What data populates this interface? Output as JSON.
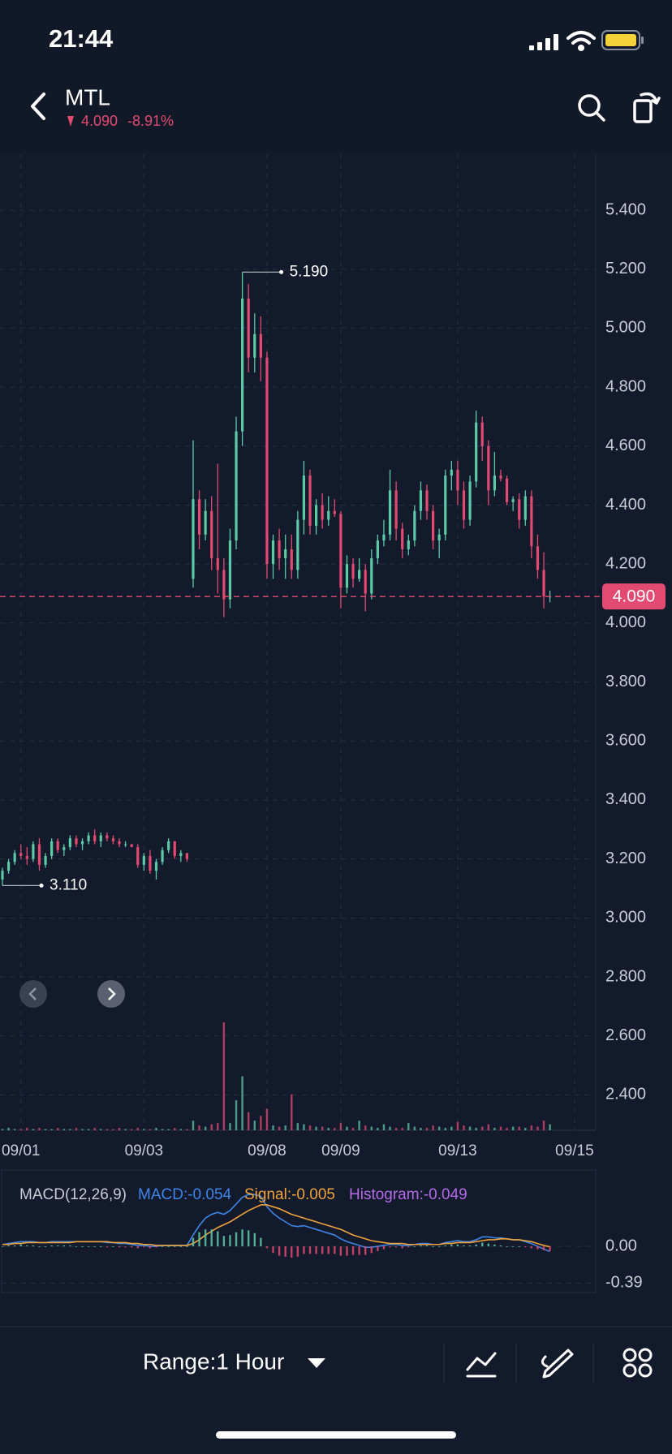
{
  "status_bar": {
    "time": "21:44"
  },
  "header": {
    "symbol": "MTL",
    "price": "4.090",
    "change": "-8.91%"
  },
  "chart_data": [
    {
      "type": "candlestick",
      "categories": [
        null,
        null,
        null,
        "09/01",
        null,
        null,
        null,
        null,
        null,
        null,
        null,
        null,
        null,
        null,
        null,
        null,
        null,
        null,
        null,
        null,
        null,
        null,
        null,
        "09/03",
        null,
        null,
        null,
        null,
        null,
        null,
        null,
        null,
        null,
        null,
        null,
        null,
        null,
        null,
        null,
        null,
        null,
        null,
        null,
        "09/08",
        null,
        null,
        null,
        null,
        null,
        null,
        null,
        null,
        null,
        null,
        null,
        "09/09",
        null,
        null,
        null,
        null,
        null,
        null,
        null,
        null,
        null,
        null,
        null,
        null,
        null,
        null,
        null,
        null,
        null,
        null,
        "09/13",
        null,
        null,
        null,
        null,
        null,
        null,
        null,
        null,
        null,
        null,
        null,
        null,
        null,
        null,
        null,
        null,
        null,
        null,
        "09/15"
      ],
      "open": [
        3.13,
        3.16,
        3.19,
        3.22,
        3.21,
        3.2,
        3.25,
        3.18,
        3.21,
        3.26,
        3.23,
        3.24,
        3.27,
        3.25,
        3.26,
        3.28,
        3.26,
        3.28,
        3.27,
        3.26,
        3.25,
        3.25,
        3.24,
        3.18,
        3.21,
        3.16,
        3.19,
        3.23,
        3.26,
        3.21,
        3.22,
        4.15,
        4.42,
        4.3,
        4.38,
        4.22,
        4.18,
        4.08,
        4.28,
        4.65,
        5.1,
        4.9,
        4.98,
        4.9,
        4.2,
        4.28,
        4.22,
        4.25,
        4.18,
        4.35,
        4.5,
        4.33,
        4.4,
        4.35,
        4.38,
        4.37,
        4.12,
        4.2,
        4.15,
        4.18,
        4.1,
        4.22,
        4.28,
        4.3,
        4.45,
        4.32,
        4.25,
        4.28,
        4.38,
        4.45,
        4.38,
        4.28,
        4.3,
        4.5,
        4.52,
        4.45,
        4.35,
        4.48,
        4.68,
        4.6,
        4.45,
        4.5,
        4.49,
        4.41,
        4.42,
        4.35,
        4.43,
        4.26,
        4.18,
        4.09,
        null,
        null,
        null,
        null
      ],
      "high": [
        3.17,
        3.2,
        3.23,
        3.25,
        3.24,
        3.26,
        3.27,
        3.22,
        3.27,
        3.27,
        3.25,
        3.28,
        3.28,
        3.27,
        3.29,
        3.3,
        3.29,
        3.29,
        3.28,
        3.27,
        3.26,
        3.25,
        3.25,
        3.22,
        3.23,
        3.2,
        3.24,
        3.27,
        3.26,
        3.23,
        3.22,
        4.62,
        4.45,
        4.42,
        4.43,
        4.54,
        4.22,
        4.32,
        4.7,
        5.19,
        5.15,
        5.05,
        5.04,
        4.92,
        4.3,
        4.32,
        4.3,
        4.3,
        4.38,
        4.55,
        4.52,
        4.42,
        4.44,
        4.43,
        4.42,
        4.38,
        4.23,
        4.22,
        4.22,
        4.2,
        4.25,
        4.3,
        4.35,
        4.52,
        4.48,
        4.34,
        4.3,
        4.4,
        4.48,
        4.47,
        4.4,
        4.32,
        4.52,
        4.55,
        4.55,
        4.48,
        4.5,
        4.72,
        4.7,
        4.62,
        4.58,
        4.52,
        4.5,
        4.43,
        4.44,
        4.45,
        4.45,
        4.3,
        4.24,
        4.11,
        null,
        null,
        null,
        null
      ],
      "low": [
        3.11,
        3.15,
        3.18,
        3.2,
        3.18,
        3.19,
        3.16,
        3.17,
        3.2,
        3.22,
        3.21,
        3.23,
        3.24,
        3.23,
        3.25,
        3.25,
        3.24,
        3.26,
        3.25,
        3.24,
        3.24,
        3.24,
        3.17,
        3.16,
        3.15,
        3.13,
        3.18,
        3.22,
        3.2,
        3.19,
        3.19,
        4.12,
        4.25,
        4.28,
        4.18,
        4.1,
        4.02,
        4.05,
        4.25,
        4.6,
        4.85,
        4.85,
        4.82,
        4.15,
        4.15,
        4.18,
        4.15,
        4.15,
        4.15,
        4.3,
        4.3,
        4.3,
        4.32,
        4.33,
        4.36,
        4.05,
        4.1,
        4.12,
        4.14,
        4.04,
        4.08,
        4.2,
        4.26,
        4.28,
        4.28,
        4.22,
        4.23,
        4.26,
        4.35,
        4.35,
        4.25,
        4.22,
        4.28,
        4.45,
        4.4,
        4.32,
        4.33,
        4.46,
        4.55,
        4.4,
        4.43,
        4.48,
        4.4,
        4.38,
        4.32,
        4.33,
        4.22,
        4.15,
        4.05,
        4.07,
        null,
        null,
        null,
        null
      ],
      "close": [
        3.16,
        3.19,
        3.22,
        3.21,
        3.2,
        3.25,
        3.18,
        3.21,
        3.26,
        3.23,
        3.24,
        3.27,
        3.25,
        3.26,
        3.28,
        3.26,
        3.28,
        3.27,
        3.26,
        3.25,
        3.25,
        3.24,
        3.18,
        3.21,
        3.16,
        3.19,
        3.23,
        3.26,
        3.21,
        3.22,
        3.2,
        4.42,
        4.3,
        4.38,
        4.22,
        4.18,
        4.08,
        4.28,
        4.65,
        5.1,
        4.9,
        4.98,
        4.9,
        4.2,
        4.28,
        4.22,
        4.25,
        4.18,
        4.35,
        4.5,
        4.33,
        4.4,
        4.35,
        4.38,
        4.37,
        4.12,
        4.2,
        4.15,
        4.18,
        4.1,
        4.22,
        4.28,
        4.3,
        4.45,
        4.32,
        4.25,
        4.28,
        4.38,
        4.45,
        4.38,
        4.28,
        4.3,
        4.5,
        4.52,
        4.45,
        4.35,
        4.48,
        4.68,
        4.6,
        4.45,
        4.5,
        4.49,
        4.41,
        4.42,
        4.35,
        4.43,
        4.26,
        4.18,
        4.09,
        4.09,
        null,
        null,
        null,
        null
      ],
      "up_color": "#5cc9a7",
      "down_color": "#e24a72",
      "ylim": [
        2.28,
        5.59
      ],
      "yticks": [
        {
          "value": 5.4,
          "label": "5.400"
        },
        {
          "value": 5.2,
          "label": "5.200"
        },
        {
          "value": 5.0,
          "label": "5.000"
        },
        {
          "value": 4.8,
          "label": "4.800"
        },
        {
          "value": 4.6,
          "label": "4.600"
        },
        {
          "value": 4.4,
          "label": "4.400"
        },
        {
          "value": 4.2,
          "label": "4.200"
        },
        {
          "value": 4.0,
          "label": "4.000"
        },
        {
          "value": 3.8,
          "label": "3.800"
        },
        {
          "value": 3.6,
          "label": "3.600"
        },
        {
          "value": 3.4,
          "label": "3.400"
        },
        {
          "value": 3.2,
          "label": "3.200"
        },
        {
          "value": 3.0,
          "label": "3.000"
        },
        {
          "value": 2.8,
          "label": "2.800"
        },
        {
          "value": 2.6,
          "label": "2.600"
        },
        {
          "value": 2.4,
          "label": "2.400"
        }
      ],
      "grid": true,
      "last_price": {
        "value": 4.09,
        "label": "4.090"
      },
      "high_label": {
        "value": 5.19,
        "label": "5.190"
      },
      "low_label": {
        "value": 3.11,
        "label": "3.110"
      }
    },
    {
      "type": "bar",
      "values": [
        1,
        2,
        1,
        1,
        2,
        1,
        2,
        1,
        1,
        2,
        1,
        1,
        2,
        1,
        1,
        2,
        1,
        1,
        1,
        2,
        1,
        1,
        2,
        1,
        1,
        2,
        1,
        1,
        2,
        1,
        1,
        8,
        4,
        3,
        5,
        6,
        90,
        6,
        25,
        45,
        15,
        8,
        12,
        18,
        4,
        3,
        4,
        30,
        6,
        5,
        4,
        3,
        3,
        2,
        2,
        6,
        3,
        2,
        8,
        4,
        3,
        2,
        5,
        3,
        2,
        2,
        6,
        3,
        2,
        2,
        4,
        3,
        2,
        3,
        7,
        4,
        3,
        2,
        3,
        5,
        2,
        3,
        2,
        3,
        3,
        2,
        4,
        3,
        8,
        5,
        null,
        null,
        null,
        null
      ]
    },
    {
      "type": "macd",
      "title": "MACD(12,26,9)",
      "ylim": [
        -0.49,
        0.81
      ],
      "yticks": [
        {
          "value": 0,
          "label": "0.00"
        },
        {
          "value": -0.39,
          "label": "-0.39"
        }
      ],
      "up_color": "#5cc9a7",
      "down_color": "#e24a72",
      "series": [
        {
          "name": "MACD:-0.054",
          "color": "#3f86e8",
          "values": [
            0.02,
            0.03,
            0.04,
            0.05,
            0.05,
            0.05,
            0.04,
            0.04,
            0.05,
            0.05,
            0.05,
            0.05,
            0.05,
            0.05,
            0.05,
            0.05,
            0.05,
            0.04,
            0.04,
            0.03,
            0.03,
            0.02,
            0.01,
            0.01,
            0.0,
            0.0,
            0.01,
            0.01,
            0.01,
            0.01,
            0.01,
            0.12,
            0.22,
            0.3,
            0.34,
            0.36,
            0.34,
            0.38,
            0.45,
            0.52,
            0.55,
            0.55,
            0.53,
            0.42,
            0.35,
            0.3,
            0.26,
            0.22,
            0.21,
            0.22,
            0.2,
            0.18,
            0.16,
            0.14,
            0.12,
            0.08,
            0.05,
            0.03,
            0.01,
            -0.01,
            -0.01,
            0.0,
            0.01,
            0.02,
            0.02,
            0.01,
            0.01,
            0.02,
            0.03,
            0.03,
            0.02,
            0.02,
            0.04,
            0.05,
            0.06,
            0.05,
            0.05,
            0.07,
            0.1,
            0.1,
            0.09,
            0.09,
            0.08,
            0.07,
            0.07,
            0.05,
            0.03,
            0.0,
            -0.03,
            -0.054,
            null,
            null,
            null,
            null
          ]
        },
        {
          "name": "Signal:-0.005",
          "color": "#f0a33a",
          "values": [
            0.02,
            0.02,
            0.03,
            0.03,
            0.04,
            0.04,
            0.04,
            0.04,
            0.04,
            0.04,
            0.04,
            0.04,
            0.05,
            0.05,
            0.05,
            0.05,
            0.05,
            0.05,
            0.04,
            0.04,
            0.04,
            0.03,
            0.03,
            0.02,
            0.02,
            0.01,
            0.01,
            0.01,
            0.01,
            0.01,
            0.01,
            0.03,
            0.07,
            0.12,
            0.16,
            0.2,
            0.23,
            0.26,
            0.3,
            0.34,
            0.38,
            0.41,
            0.44,
            0.44,
            0.42,
            0.4,
            0.37,
            0.34,
            0.32,
            0.3,
            0.28,
            0.26,
            0.24,
            0.22,
            0.2,
            0.18,
            0.15,
            0.12,
            0.1,
            0.08,
            0.06,
            0.05,
            0.04,
            0.03,
            0.03,
            0.03,
            0.02,
            0.02,
            0.02,
            0.02,
            0.02,
            0.02,
            0.03,
            0.03,
            0.04,
            0.04,
            0.04,
            0.05,
            0.06,
            0.07,
            0.07,
            0.08,
            0.08,
            0.07,
            0.07,
            0.06,
            0.05,
            0.03,
            0.01,
            -0.005,
            null,
            null,
            null,
            null
          ]
        },
        {
          "name": "Histogram:-0.049",
          "color": "#b36be6",
          "style": "bar",
          "values": [
            0,
            0.01,
            0.01,
            0.02,
            0.01,
            0.01,
            0,
            0,
            0.01,
            0.01,
            0.01,
            0.01,
            0,
            0,
            0,
            0,
            0,
            -0.01,
            0,
            -0.01,
            -0.01,
            -0.01,
            -0.02,
            -0.01,
            -0.02,
            -0.01,
            0,
            0,
            0,
            0,
            0,
            0.09,
            0.15,
            0.18,
            0.18,
            0.16,
            0.11,
            0.12,
            0.15,
            0.18,
            0.17,
            0.14,
            0.09,
            -0.02,
            -0.07,
            -0.1,
            -0.11,
            -0.12,
            -0.11,
            -0.08,
            -0.08,
            -0.08,
            -0.08,
            -0.08,
            -0.08,
            -0.1,
            -0.1,
            -0.09,
            -0.09,
            -0.09,
            -0.07,
            -0.05,
            -0.03,
            -0.01,
            -0.01,
            -0.02,
            -0.01,
            0,
            0.01,
            0.01,
            0,
            0,
            0.01,
            0.02,
            0.02,
            0.01,
            0.01,
            0.02,
            0.04,
            0.03,
            0.02,
            0.01,
            0,
            0,
            0,
            -0.01,
            -0.02,
            -0.03,
            -0.04,
            -0.049,
            null,
            null,
            null,
            null
          ]
        }
      ]
    }
  ],
  "footer": {
    "range": "Range:1 Hour"
  }
}
